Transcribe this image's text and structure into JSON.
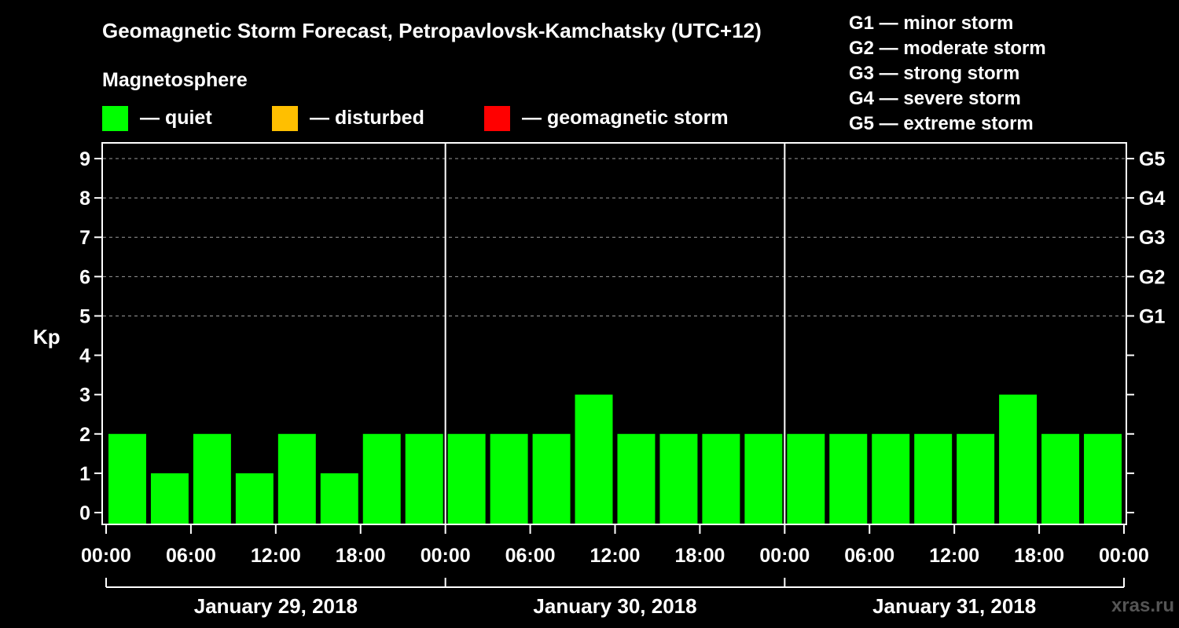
{
  "title": "Geomagnetic Storm Forecast, Petropavlovsk-Kamchatsky (UTC+12)",
  "legend": {
    "heading": "Magnetosphere",
    "items": [
      {
        "label": "— quiet",
        "color": "#00ff00"
      },
      {
        "label": "— disturbed",
        "color": "#ffbf00"
      },
      {
        "label": "— geomagnetic storm",
        "color": "#ff0000"
      }
    ]
  },
  "storm_scale": [
    "G1 — minor storm",
    "G2 — moderate storm",
    "G3 — strong storm",
    "G4 — severe storm",
    "G5 — extreme storm"
  ],
  "watermark": "xras.ru",
  "chart_data": {
    "type": "bar",
    "ylabel": "Kp",
    "ylim": [
      -0.3,
      9.4
    ],
    "yticks": [
      "0",
      "1",
      "2",
      "3",
      "4",
      "5",
      "6",
      "7",
      "8",
      "9"
    ],
    "right_labels": [
      {
        "kp": 5,
        "label": "G1"
      },
      {
        "kp": 6,
        "label": "G2"
      },
      {
        "kp": 7,
        "label": "G3"
      },
      {
        "kp": 8,
        "label": "G4"
      },
      {
        "kp": 9,
        "label": "G5"
      }
    ],
    "grid": "dashed at Kp 5–9",
    "xtick_labels": [
      "00:00",
      "06:00",
      "12:00",
      "18:00",
      "00:00",
      "06:00",
      "12:00",
      "18:00",
      "00:00",
      "06:00",
      "12:00",
      "18:00",
      "00:00"
    ],
    "days": [
      "January 29, 2018",
      "January 30, 2018",
      "January 31, 2018"
    ],
    "interval_hours": 3,
    "values": [
      2,
      1,
      2,
      1,
      2,
      1,
      2,
      2,
      2,
      2,
      2,
      3,
      2,
      2,
      2,
      2,
      2,
      2,
      2,
      2,
      2,
      3,
      2,
      2
    ],
    "bar_color": "#00ff00"
  }
}
